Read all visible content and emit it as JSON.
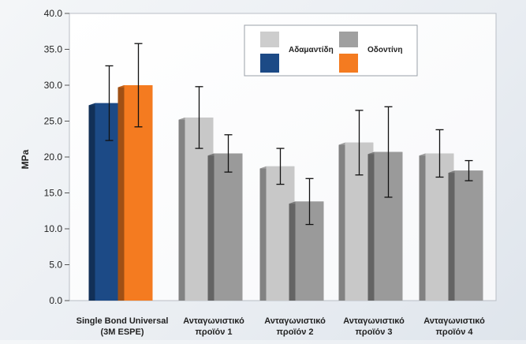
{
  "chart_data": {
    "type": "bar",
    "ylabel": "MPa",
    "ylim": [
      0,
      40
    ],
    "yticks": [
      "0.0",
      "5.0",
      "10.0",
      "15.0",
      "20.0",
      "25.0",
      "30.0",
      "35.0",
      "40.0"
    ],
    "grid": false,
    "legend_position": "top-right",
    "categories": [
      [
        "Single Bond Universal",
        "(3M ESPE)"
      ],
      [
        "Ανταγωνιστικό",
        "προϊόν 1"
      ],
      [
        "Ανταγωνιστικό",
        "προϊόν 2"
      ],
      [
        "Ανταγωνιστικό",
        "προϊόν 3"
      ],
      [
        "Ανταγωνιστικό",
        "προϊόν 4"
      ]
    ],
    "series": [
      {
        "name": "Αδαμαντίδη",
        "values": [
          27.5,
          25.5,
          18.7,
          22.0,
          20.5
        ],
        "error": [
          5.2,
          4.3,
          2.5,
          4.5,
          3.3
        ]
      },
      {
        "name": "Οδοντίνη",
        "values": [
          30.0,
          20.5,
          13.8,
          20.7,
          18.1
        ],
        "error": [
          5.8,
          2.6,
          3.2,
          6.3,
          1.4
        ]
      }
    ],
    "colors": {
      "series0_front": "#1c4a86",
      "series1_front": "#f47b20",
      "gray_light": "#c8c8c8",
      "gray_dark": "#9a9a9a"
    }
  }
}
